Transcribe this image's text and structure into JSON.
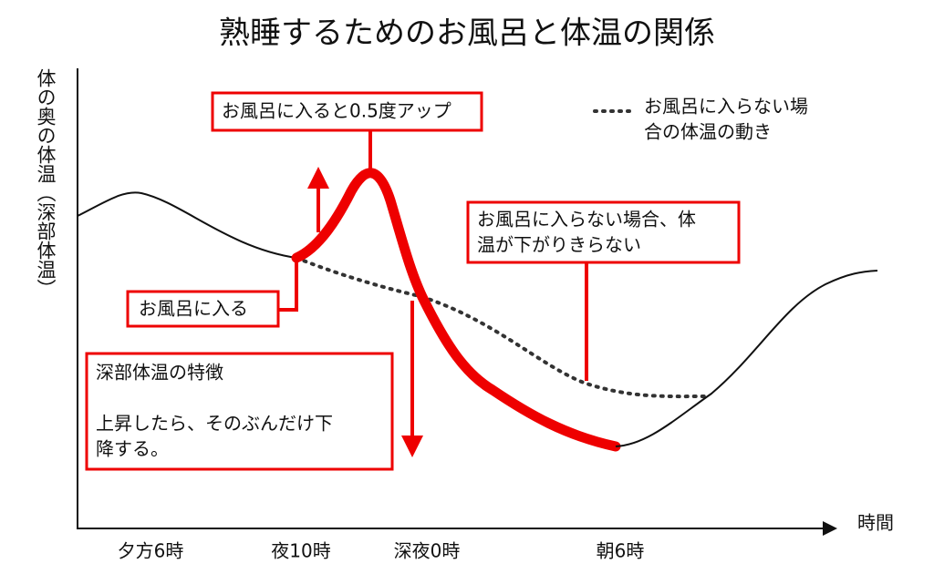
{
  "title": "熟睡するためのお風呂と体温の関係",
  "y_axis_label": "体の奥の体温（深部体温）",
  "x_axis_label": "時間",
  "x_labels": [
    "夕方6時",
    "夜10時",
    "深夜0時",
    "朝6時"
  ],
  "legend": {
    "lines": [
      "お風呂に入らない場",
      "合の体温の動き"
    ]
  },
  "callouts": [
    {
      "lines": [
        "お風呂に入ると0.5度アップ"
      ]
    },
    {
      "lines": [
        "お風呂に入る"
      ]
    },
    {
      "lines": [
        "お風呂に入らない場合、体",
        "温が下がりきらない"
      ]
    }
  ],
  "feature_box": {
    "title": "深部体温の特徴",
    "lines": [
      "上昇したら、そのぶんだけ下",
      "降する。"
    ]
  }
}
